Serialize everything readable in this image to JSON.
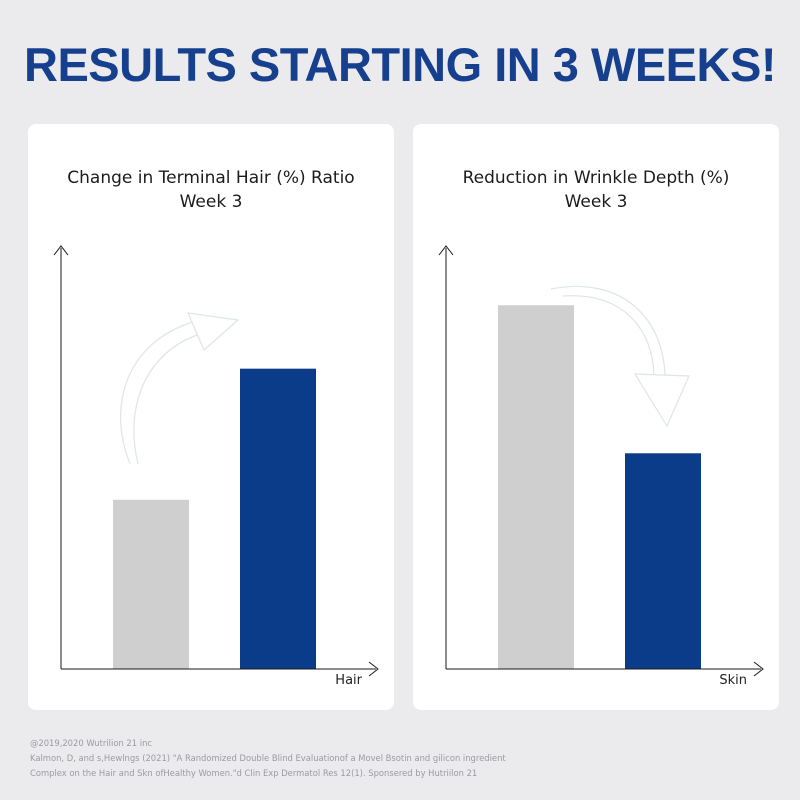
{
  "headline": "RESULTS STARTING IN 3 WEEKS!",
  "colors": {
    "headline": "#163f8e",
    "bar_baseline": "#cfcfcf",
    "bar_week3": "#0b3c8a",
    "arrow": "#dfe5e5",
    "axis": "#1a1a1a",
    "background": "#ebebee"
  },
  "chart_data": [
    {
      "type": "bar",
      "title": "Change in Terminal Hair (%) Ratio",
      "subtitle": "Week 3",
      "xlabel": "Hair",
      "ylabel": "",
      "ylim": [
        0,
        100
      ],
      "categories": [
        "",
        ""
      ],
      "values": [
        40,
        71
      ],
      "bar_colors": [
        "#cfcfcf",
        "#0b3c8a"
      ],
      "annotation": "curved-arrow-up",
      "axis_ticks": false
    },
    {
      "type": "bar",
      "title": "Reduction in Wrinkle Depth (%)",
      "subtitle": "Week 3",
      "xlabel": "Skin",
      "ylabel": "",
      "ylim": [
        0,
        100
      ],
      "categories": [
        "",
        ""
      ],
      "values": [
        86,
        51
      ],
      "bar_colors": [
        "#cfcfcf",
        "#0b3c8a"
      ],
      "annotation": "curved-arrow-down",
      "axis_ticks": false
    }
  ],
  "footer": {
    "line1": "@2019,2020 Wutrilion 21 inc",
    "line2": "Kalmon, D, and s,Hewlngs (2021) \"A Randomized Double Blind Evaluationof a Movel Bsotin and gilicon ingredient",
    "line3": "Complex on the Hair and Skn ofHealthy Women.\"d Clin Exp Dermatol Res 12(1). Sponsered by Hutriilon 21"
  }
}
